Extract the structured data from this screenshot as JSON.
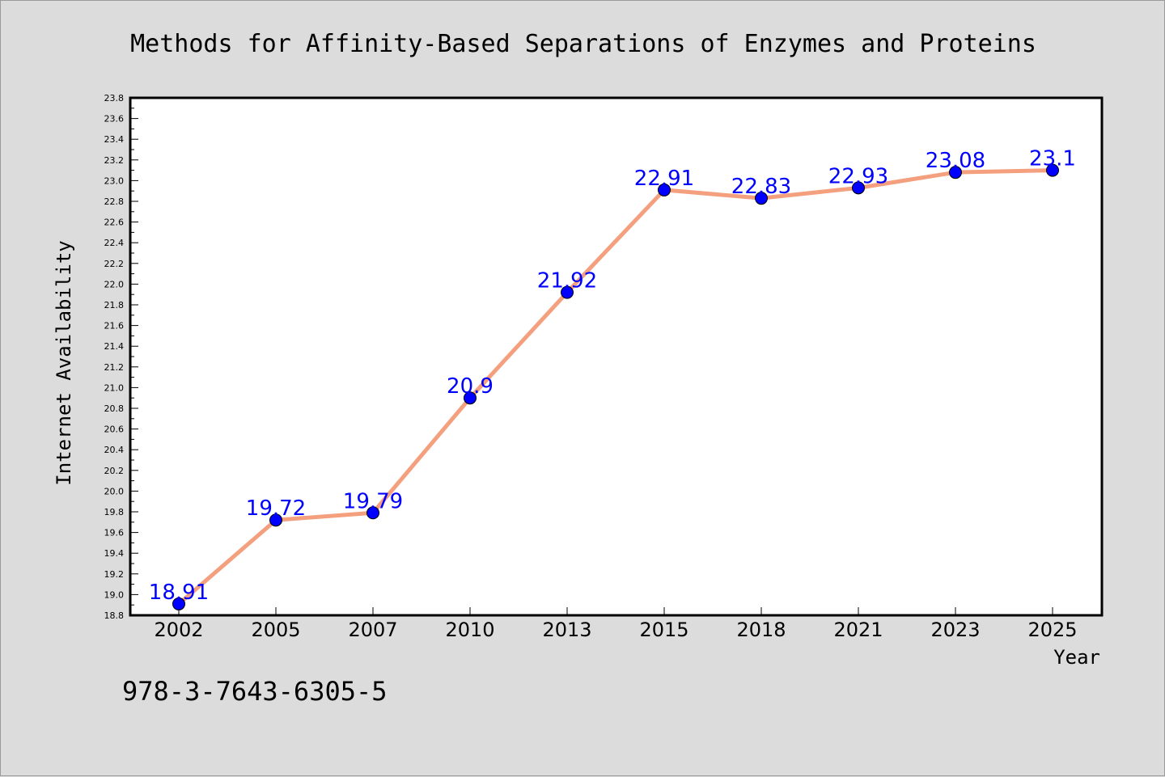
{
  "colors": {
    "background": "#dcdcdc",
    "plot_background": "#ffffff",
    "line": "#f4a07e",
    "marker": "#0000ff",
    "data_label": "#0000ff"
  },
  "footnote": "978-3-7643-6305-5",
  "chart_data": {
    "type": "line",
    "title": "Methods for Affinity-Based Separations of Enzymes and Proteins",
    "xlabel": "Year",
    "ylabel": "Internet Availability",
    "categories": [
      "2002",
      "2005",
      "2007",
      "2010",
      "2013",
      "2015",
      "2018",
      "2021",
      "2023",
      "2025"
    ],
    "series": [
      {
        "values": [
          18.91,
          19.72,
          19.79,
          20.9,
          21.92,
          22.91,
          22.83,
          22.93,
          23.08,
          23.1
        ]
      }
    ],
    "data_labels": [
      "18.91",
      "19.72",
      "19.79",
      "20.9",
      "21.92",
      "22.91",
      "22.83",
      "22.93",
      "23.08",
      "23.1"
    ],
    "ylim": [
      18.8,
      23.8
    ],
    "yticks": [
      "18.8",
      "19.0",
      "19.2",
      "19.4",
      "19.6",
      "19.8",
      "20.0",
      "20.2",
      "20.4",
      "20.6",
      "20.8",
      "21.0",
      "21.2",
      "21.4",
      "21.6",
      "21.8",
      "22.0",
      "22.2",
      "22.4",
      "22.6",
      "22.8",
      "23.0",
      "23.2",
      "23.4",
      "23.6",
      "23.8"
    ],
    "grid": false,
    "legend": "none"
  }
}
